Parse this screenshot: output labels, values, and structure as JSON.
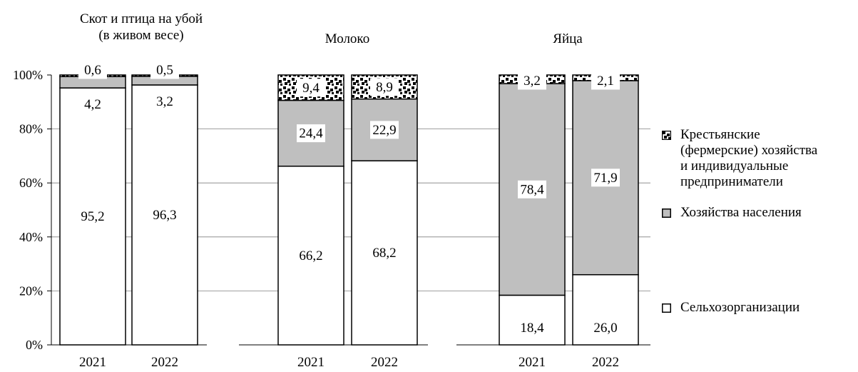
{
  "chart_data": {
    "type": "bar",
    "stacked": true,
    "percent_axis": true,
    "groups": [
      {
        "title_line1": "Скот и птица на убой",
        "title_line2": "(в живом весе)",
        "years": [
          "2021",
          "2022"
        ],
        "series": [
          {
            "name": "Сельхозорганизации",
            "values": [
              95.2,
              96.3
            ],
            "labels": [
              "95,2",
              "96,3"
            ]
          },
          {
            "name": "Хозяйства населения",
            "values": [
              4.2,
              3.2
            ],
            "labels": [
              "4,2",
              "3,2"
            ]
          },
          {
            "name": "Крестьянские (фермерские) хозяйства и индивидуальные предприниматели",
            "values": [
              0.6,
              0.5
            ],
            "labels": [
              "0,6",
              "0,5"
            ]
          }
        ]
      },
      {
        "title_line1": "Молоко",
        "title_line2": "",
        "years": [
          "2021",
          "2022"
        ],
        "series": [
          {
            "name": "Сельхозорганизации",
            "values": [
              66.2,
              68.2
            ],
            "labels": [
              "66,2",
              "68,2"
            ]
          },
          {
            "name": "Хозяйства населения",
            "values": [
              24.4,
              22.9
            ],
            "labels": [
              "24,4",
              "22,9"
            ]
          },
          {
            "name": "Крестьянские (фермерские) хозяйства и индивидуальные предприниматели",
            "values": [
              9.4,
              8.9
            ],
            "labels": [
              "9,4",
              "8,9"
            ]
          }
        ]
      },
      {
        "title_line1": "Яйца",
        "title_line2": "",
        "years": [
          "2021",
          "2022"
        ],
        "series": [
          {
            "name": "Сельхозорганизации",
            "values": [
              18.4,
              26.0
            ],
            "labels": [
              "18,4",
              "26,0"
            ]
          },
          {
            "name": "Хозяйства населения",
            "values": [
              78.4,
              71.9
            ],
            "labels": [
              "78,4",
              "71,9"
            ]
          },
          {
            "name": "Крестьянские (фермерские) хозяйства и индивидуальные предприниматели",
            "values": [
              3.2,
              2.1
            ],
            "labels": [
              "3,2",
              "2,1"
            ]
          }
        ]
      }
    ],
    "y_ticks": [
      "0%",
      "20%",
      "40%",
      "60%",
      "80%",
      "100%"
    ],
    "ylim": [
      0,
      100
    ],
    "grid": true,
    "legend_position": "right",
    "legend": [
      {
        "key": "farms",
        "lines": [
          "Крестьянские",
          "(фермерские) хозяйства",
          "и индивидуальные",
          "предприниматели"
        ]
      },
      {
        "key": "households",
        "lines": [
          "Хозяйства населения"
        ]
      },
      {
        "key": "agri",
        "lines": [
          "Сельхозорганизации"
        ]
      }
    ],
    "colors": {
      "agri": "#ffffff",
      "households": "#bfbfbf",
      "farms": "#000000",
      "outline": "#000000",
      "grid": "#808080"
    }
  }
}
